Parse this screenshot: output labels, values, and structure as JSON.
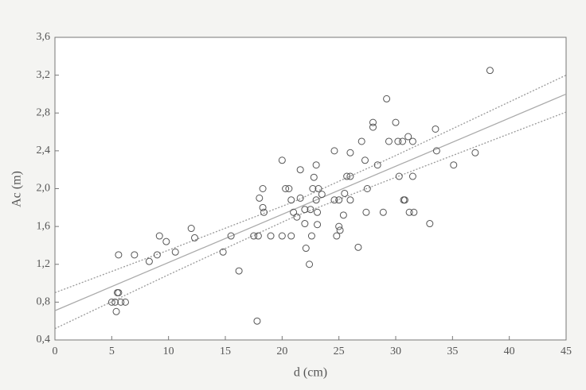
{
  "chart_data": {
    "type": "scatter",
    "xlabel": "d (cm)",
    "ylabel": "Ac (m)",
    "xlim": [
      0,
      45
    ],
    "xticks": [
      0,
      5,
      10,
      15,
      20,
      25,
      30,
      35,
      40,
      45
    ],
    "ylim": [
      0.4,
      3.6
    ],
    "yticks": [
      {
        "value": 0.4,
        "label": "0,4"
      },
      {
        "value": 0.8,
        "label": "0,8"
      },
      {
        "value": 1.2,
        "label": "1,2"
      },
      {
        "value": 1.6,
        "label": "1,6"
      },
      {
        "value": 2.0,
        "label": "2,0"
      },
      {
        "value": 2.4,
        "label": "2,4"
      },
      {
        "value": 2.8,
        "label": "2,8"
      },
      {
        "value": 3.2,
        "label": "3,2"
      },
      {
        "value": 3.6,
        "label": "3,6"
      }
    ],
    "color": "#555555",
    "x": [
      5,
      5.3,
      5.5,
      5.6,
      5.8,
      6.2,
      5.4,
      5.6,
      7,
      8.3,
      9,
      9.2,
      9.8,
      10.6,
      12,
      12.3,
      14.8,
      15.5,
      16.2,
      17.5,
      17.9,
      17.8,
      18,
      18.3,
      18.3,
      18.4,
      19,
      20,
      20,
      20.3,
      20.6,
      20.8,
      20.8,
      21,
      21.3,
      21.6,
      21.6,
      22,
      22,
      22.1,
      22.4,
      22.5,
      22.6,
      22.7,
      22.8,
      23,
      23,
      23.1,
      23.1,
      23.2,
      23.5,
      24.6,
      24.6,
      24.8,
      25,
      25,
      25.1,
      25.4,
      25.5,
      25.7,
      26,
      26,
      26,
      26.7,
      27,
      27.3,
      27.4,
      27.5,
      28,
      28,
      28.4,
      28.9,
      29.2,
      29.4,
      30,
      30.2,
      30.3,
      30.6,
      30.7,
      30.8,
      31.1,
      31.2,
      31.5,
      31.5,
      31.6,
      33,
      33.5,
      33.6,
      35.1,
      37,
      38.3
    ],
    "y": [
      0.8,
      0.8,
      0.9,
      0.9,
      0.8,
      0.8,
      0.7,
      1.3,
      1.3,
      1.23,
      1.3,
      1.5,
      1.44,
      1.33,
      1.58,
      1.48,
      1.33,
      1.5,
      1.13,
      1.5,
      1.5,
      0.6,
      1.9,
      2.0,
      1.8,
      1.75,
      1.5,
      2.3,
      1.5,
      2.0,
      2.0,
      1.5,
      1.88,
      1.75,
      1.7,
      1.9,
      2.2,
      1.63,
      1.78,
      1.37,
      1.2,
      1.78,
      1.5,
      2.0,
      2.12,
      2.25,
      1.88,
      1.75,
      1.62,
      2.0,
      1.94,
      1.88,
      2.4,
      1.5,
      1.88,
      1.6,
      1.56,
      1.72,
      1.95,
      2.13,
      2.13,
      2.38,
      1.88,
      1.38,
      2.5,
      2.3,
      1.75,
      2.0,
      2.7,
      2.65,
      2.25,
      1.75,
      2.95,
      2.5,
      2.7,
      2.5,
      2.13,
      2.5,
      1.88,
      1.88,
      2.55,
      1.75,
      2.5,
      2.13,
      1.75,
      1.63,
      2.63,
      2.4,
      2.25,
      2.38,
      3.25
    ],
    "lines": [
      {
        "style": "solid",
        "color": "#aaaaaa",
        "x": [
          0,
          45
        ],
        "values": [
          0.71,
          3.0
        ]
      },
      {
        "style": "dotted",
        "color": "#999999",
        "x": [
          0,
          10,
          21,
          30,
          45
        ],
        "values": [
          0.9,
          1.35,
          1.86,
          2.35,
          3.2
        ]
      },
      {
        "style": "dotted",
        "color": "#999999",
        "x": [
          0,
          10,
          21,
          30,
          45
        ],
        "values": [
          0.52,
          1.09,
          1.7,
          2.12,
          2.81
        ]
      }
    ]
  }
}
